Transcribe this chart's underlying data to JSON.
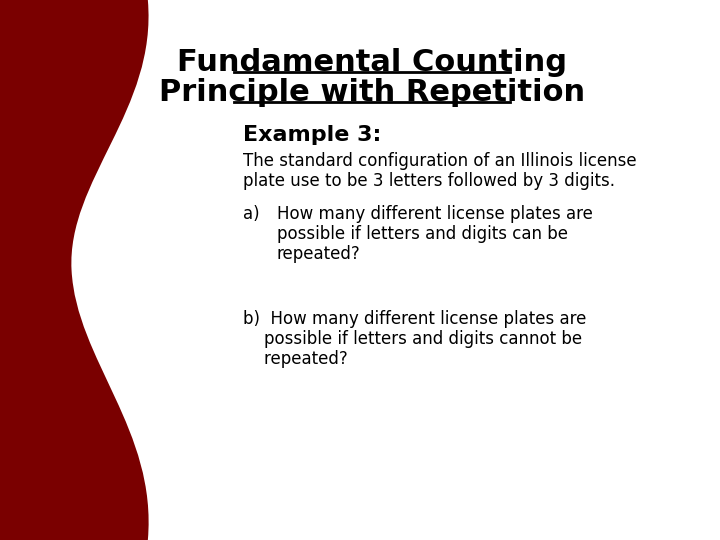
{
  "title_line1": "Fundamental Counting",
  "title_line2": "Principle with Repetition",
  "example_label": "Example 3:",
  "description_line1": "The standard configuration of an Illinois license",
  "description_line2": "plate use to be 3 letters followed by 3 digits.",
  "part_a_label": "a)",
  "part_a_line1": "How many different license plates are",
  "part_a_line2": "possible if letters and digits can be",
  "part_a_line3": "repeated?",
  "part_b_line1": "b)  How many different license plates are",
  "part_b_line2": "    possible if letters and digits cannot be",
  "part_b_line3": "    repeated?",
  "bg_color": "#ffffff",
  "left_color_top": "#8b0000",
  "left_color_bottom": "#8b0000",
  "text_color": "#000000"
}
